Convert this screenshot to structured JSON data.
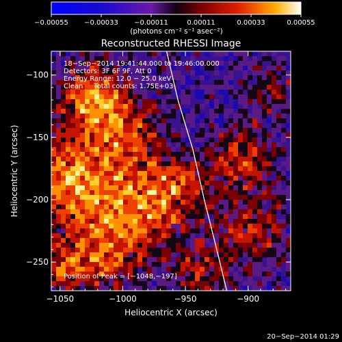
{
  "chart_data": {
    "type": "heatmap",
    "title": "Reconstructed RHESSI Image",
    "xlabel": "Heliocentric X (arcsec)",
    "ylabel": "Heliocentric Y (arcsec)",
    "xlim": [
      -1057,
      -866
    ],
    "ylim": [
      -273,
      -81
    ],
    "x_ticks": [
      -1050,
      -1000,
      -950,
      -900
    ],
    "x_tick_labels": [
      "−1050",
      "−1000",
      "−950",
      "−900"
    ],
    "y_ticks": [
      -100,
      -150,
      -200,
      -250
    ],
    "y_tick_labels": [
      "−100",
      "−150",
      "−200",
      "−250"
    ],
    "colorbar": {
      "min": -0.00055,
      "max": 0.00055,
      "ticks": [
        -0.00055,
        -0.00033,
        -0.00011,
        0.00011,
        0.00033,
        0.00055
      ],
      "tick_labels": [
        "−0.00055",
        "−0.00033",
        "−0.00011",
        "0.00011",
        "0.00033",
        "0.00055"
      ],
      "units_label": "(photons cm⁻² s⁻¹ asec⁻²)"
    },
    "annotations": [
      "18−Sep−2014 19:41:44.000 to 19:46:00.000",
      "Detectors: 3F 6F 9F, Att 0",
      "Energy Range: 12.0 − 25.0 keV",
      "Clean     Total counts: 1.75E+03"
    ],
    "peak_label": "Position of Peak = [−1048,−197]",
    "peak_position": [
      -1048,
      -197
    ],
    "limb_curve": [
      [
        -965,
        -81
      ],
      [
        -956,
        -120
      ],
      [
        -944,
        -160
      ],
      [
        -935,
        -200
      ],
      [
        -925,
        -240
      ],
      [
        -917,
        -273
      ]
    ],
    "footer": "20−Sep−2014 01:29"
  }
}
